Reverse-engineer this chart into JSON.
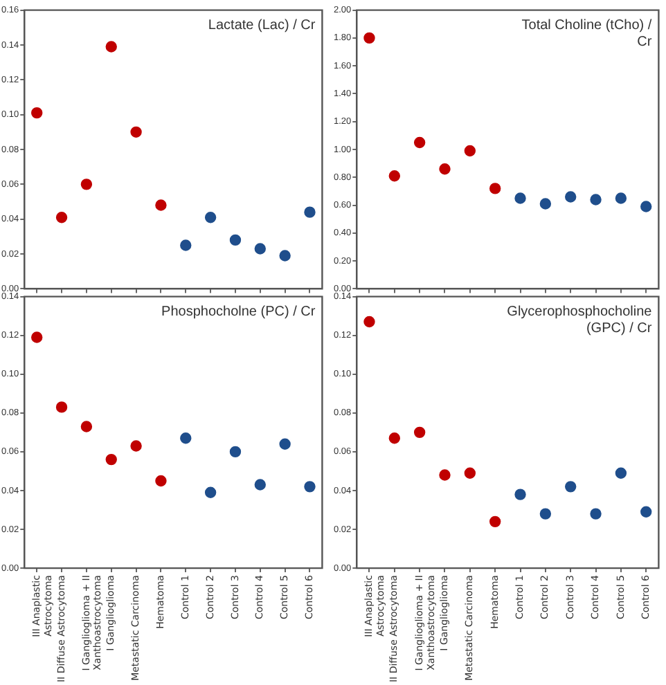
{
  "chart_data": [
    {
      "type": "scatter",
      "title": "Lactate (Lac) / Cr",
      "categories": [
        null,
        null,
        null,
        null,
        null,
        null,
        null,
        null,
        null,
        null,
        null,
        null
      ],
      "values": [
        0.101,
        0.041,
        0.06,
        0.139,
        0.09,
        0.048,
        0.025,
        0.041,
        0.028,
        0.023,
        0.019,
        0.044
      ],
      "colors": [
        "#c00000",
        "#c00000",
        "#c00000",
        "#c00000",
        "#c00000",
        "#c00000",
        "#1f4e8c",
        "#1f4e8c",
        "#1f4e8c",
        "#1f4e8c",
        "#1f4e8c",
        "#1f4e8c"
      ],
      "ylim": [
        0,
        0.16
      ],
      "yticks": [
        {
          "value": 0,
          "label": "0.00"
        },
        0.02,
        0.04,
        0.06,
        0.08,
        {
          "value": 0.1,
          "label": "0.10"
        },
        0.12,
        0.14,
        0.16
      ],
      "grid": false,
      "marker": "circle",
      "tick_labels": "y"
    },
    {
      "type": "scatter",
      "title": "Total Choline (tCho) / Cr",
      "categories": [
        null,
        null,
        null,
        null,
        null,
        null,
        null,
        null,
        null,
        null,
        null,
        null
      ],
      "values": [
        1.8,
        0.81,
        1.05,
        0.86,
        0.99,
        0.72,
        0.65,
        0.61,
        0.66,
        0.64,
        0.65,
        0.59
      ],
      "colors": [
        "#c00000",
        "#c00000",
        "#c00000",
        "#c00000",
        "#c00000",
        "#c00000",
        "#1f4e8c",
        "#1f4e8c",
        "#1f4e8c",
        "#1f4e8c",
        "#1f4e8c",
        "#1f4e8c"
      ],
      "ylim": [
        0,
        2
      ],
      "yticks": [
        {
          "value": 0,
          "label": "0.00"
        },
        {
          "value": 0.2,
          "label": "0.20"
        },
        {
          "value": 0.4,
          "label": "0.40"
        },
        {
          "value": 0.6,
          "label": "0.60"
        },
        {
          "value": 0.8,
          "label": "0.80"
        },
        {
          "value": 1,
          "label": "1.00"
        },
        {
          "value": 1.2,
          "label": "1.20"
        },
        {
          "value": 1.4,
          "label": "1.40"
        },
        {
          "value": 1.6,
          "label": "1.60"
        },
        {
          "value": 1.8,
          "label": "1.80"
        },
        {
          "value": 2,
          "label": "2.00"
        }
      ],
      "grid": false,
      "marker": "circle",
      "tick_labels": "y"
    },
    {
      "type": "scatter",
      "title": "Phosphocholne (PC) / Cr",
      "categories": [
        "III Anaplastic Astrocytoma",
        "II Diffuse Astrocytoma",
        "I Ganglioglioma + II Xanthoastrocytoma",
        "I Ganglioglioma",
        "Metastatic Carcinoma",
        "Hematoma",
        "Control 1",
        "Control 2",
        "Control 3",
        "Control 4",
        "Control 5",
        "Control 6"
      ],
      "values": [
        0.119,
        0.083,
        0.073,
        0.056,
        0.063,
        0.045,
        0.067,
        0.039,
        0.06,
        0.043,
        0.064,
        0.042
      ],
      "colors": [
        "#c00000",
        "#c00000",
        "#c00000",
        "#c00000",
        "#c00000",
        "#c00000",
        "#1f4e8c",
        "#1f4e8c",
        "#1f4e8c",
        "#1f4e8c",
        "#1f4e8c",
        "#1f4e8c"
      ],
      "ylim": [
        0,
        0.14
      ],
      "yticks": [
        {
          "value": 0,
          "label": "0.00"
        },
        0.02,
        0.04,
        0.06,
        0.08,
        {
          "value": 0.1,
          "label": "0.10"
        },
        0.12,
        0.14
      ],
      "grid": false,
      "marker": "circle"
    },
    {
      "type": "scatter",
      "title": "Glycerophosphocholine (GPC) / Cr",
      "categories": [
        "III Anaplastic Astrocytoma",
        "II Diffuse Astrocytoma",
        "I Ganglioglioma + II Xanthoastrocytoma",
        "I Ganglioglioma",
        "Metastatic Carcinoma",
        "Hematoma",
        "Control 1",
        "Control 2",
        "Control 3",
        "Control 4",
        "Control 5",
        "Control 6"
      ],
      "values": [
        0.127,
        0.067,
        0.07,
        0.048,
        0.049,
        0.024,
        0.038,
        0.028,
        0.042,
        0.028,
        0.049,
        0.029
      ],
      "colors": [
        "#c00000",
        "#c00000",
        "#c00000",
        "#c00000",
        "#c00000",
        "#c00000",
        "#1f4e8c",
        "#1f4e8c",
        "#1f4e8c",
        "#1f4e8c",
        "#1f4e8c",
        "#1f4e8c"
      ],
      "ylim": [
        0,
        0.14
      ],
      "yticks": [
        {
          "value": 0,
          "label": "0.00"
        },
        0.02,
        0.04,
        0.06,
        0.08,
        {
          "value": 0.1,
          "label": "0.10"
        },
        0.12,
        0.14
      ],
      "grid": false,
      "marker": "circle"
    }
  ]
}
